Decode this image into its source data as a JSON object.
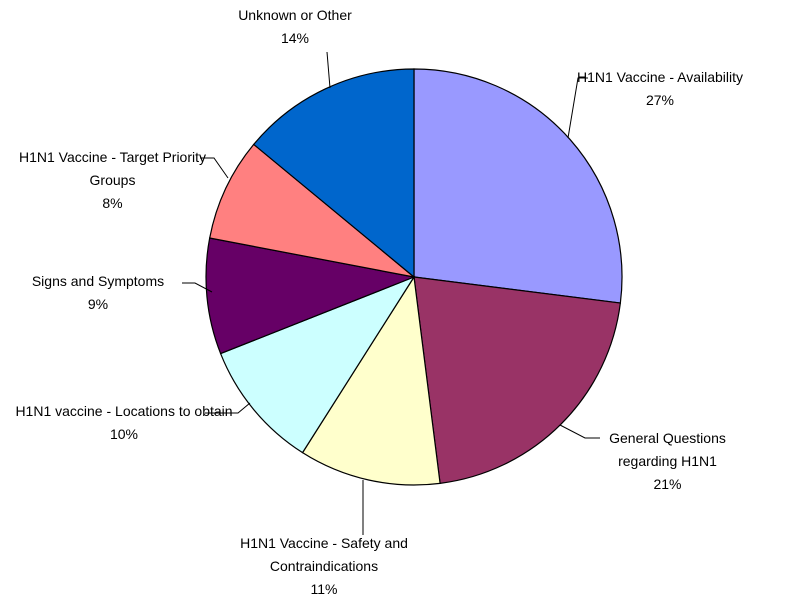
{
  "chart_data": {
    "type": "pie",
    "categories": [
      "H1N1 Vaccine - Availability",
      "General Questions regarding H1N1",
      "H1N1 Vaccine - Safety and Contraindications",
      "H1N1 vaccine - Locations to obtain",
      "Signs and Symptoms",
      "H1N1 Vaccine - Target Priority Groups",
      "Unknown or Other"
    ],
    "values": [
      27,
      21,
      11,
      10,
      9,
      8,
      14
    ],
    "value_labels": [
      "27%",
      "21%",
      "11%",
      "10%",
      "9%",
      "8%",
      "14%"
    ],
    "colors": [
      "#9999ff",
      "#993366",
      "#ffffcc",
      "#ccffff",
      "#660066",
      "#ff8080",
      "#0066cc"
    ]
  }
}
